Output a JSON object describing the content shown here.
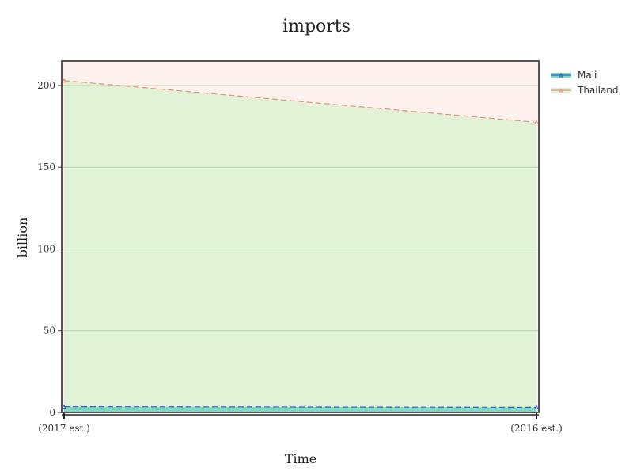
{
  "chart_data": {
    "type": "area",
    "title": "imports",
    "xlabel": "Time",
    "ylabel": "billion",
    "categories": [
      "(2017 est.)",
      "(2016 est.)"
    ],
    "ylim": [
      0,
      215
    ],
    "yticks": [
      0,
      50,
      100,
      150,
      200
    ],
    "grid": true,
    "legend_position": "top-right",
    "series": [
      {
        "name": "Mali",
        "values": [
          3.6,
          3.2
        ],
        "line_color": "#3a5bd9",
        "fill_color": "#7cd9c2"
      },
      {
        "name": "Thailand",
        "values": [
          203,
          177.5
        ],
        "line_color": "#e8937c",
        "fill_color": "#e1f2d6"
      }
    ],
    "colors": {
      "plot_background": "#fff1ed",
      "grid": "#b9d4b3",
      "frame": "#555555"
    }
  }
}
